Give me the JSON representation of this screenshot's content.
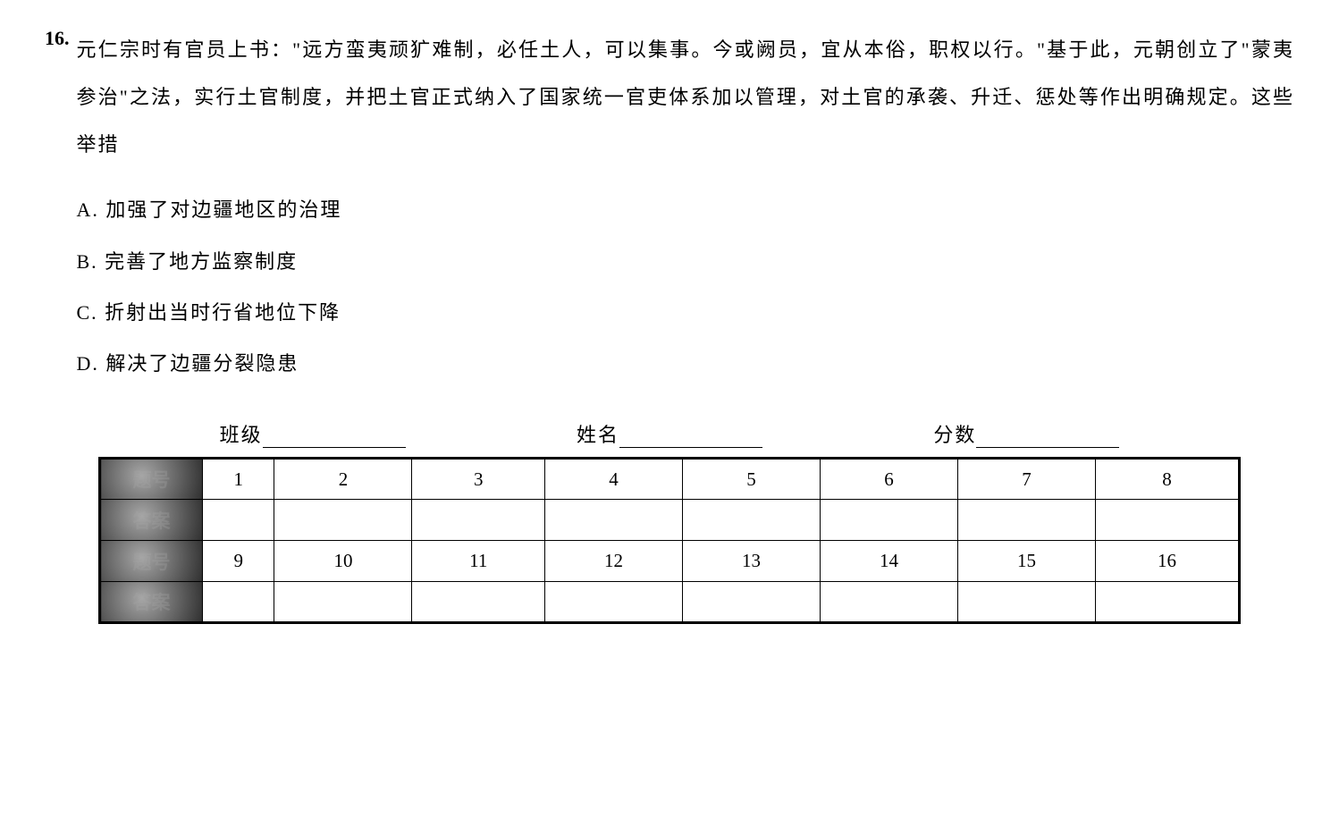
{
  "question": {
    "number": "16.",
    "stem": "元仁宗时有官员上书：\"远方蛮夷顽犷难制，必任土人，可以集事。今或阙员，宜从本俗，职权以行。\"基于此，元朝创立了\"蒙夷参治\"之法，实行土官制度，并把土官正式纳入了国家统一官吏体系加以管理，对土官的承袭、升迁、惩处等作出明确规定。这些举措",
    "options": {
      "A": "A. 加强了对边疆地区的治理",
      "B": "B. 完善了地方监察制度",
      "C": "C. 折射出当时行省地位下降",
      "D": "D. 解决了边疆分裂隐患"
    }
  },
  "answerSheet": {
    "fields": {
      "class": "班级",
      "name": "姓名",
      "score": "分数"
    },
    "rowHeaders": [
      "题号",
      "答案",
      "题号",
      "答案"
    ],
    "row1": [
      "1",
      "2",
      "3",
      "4",
      "5",
      "6",
      "7",
      "8"
    ],
    "row1ans": [
      "",
      "",
      "",
      "",
      "",
      "",
      "",
      ""
    ],
    "row2": [
      "9",
      "10",
      "11",
      "12",
      "13",
      "14",
      "15",
      "16"
    ],
    "row2ans": [
      "",
      "",
      "",
      "",
      "",
      "",
      "",
      ""
    ]
  }
}
